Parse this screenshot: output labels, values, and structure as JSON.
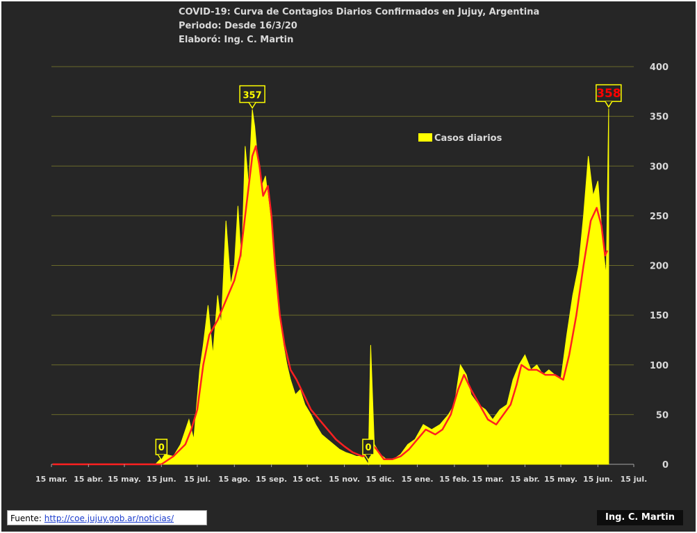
{
  "header": {
    "line1": "COVID-19: Curva de Contagios Diarios Confirmados en Jujuy, Argentina",
    "line2": "Periodo: Desde 16/3/20",
    "line3": "Elaboró: Ing. C. Martin"
  },
  "footer": {
    "source_label": "Fuente: ",
    "source_link": "http://coe.jujuy.gob.ar/noticias/",
    "author": "Ing. C. Martin"
  },
  "chart_data": {
    "type": "bar",
    "x_axis": {
      "start": "2020-03-15",
      "end": "2021-07-15",
      "tick_labels": [
        "15 mar.",
        "15 abr.",
        "15 may.",
        "15 jun.",
        "15 jul.",
        "15 ago.",
        "15 sep.",
        "15 oct.",
        "15 nov.",
        "15 dic.",
        "15 ene.",
        "15 feb.",
        "15 mar.",
        "15 abr.",
        "15 may.",
        "15 jun.",
        "15 jul."
      ],
      "tick_dates": [
        "2020-03-15",
        "2020-04-15",
        "2020-05-15",
        "2020-06-15",
        "2020-07-15",
        "2020-08-15",
        "2020-09-15",
        "2020-10-15",
        "2020-11-15",
        "2020-12-15",
        "2021-01-15",
        "2021-02-15",
        "2021-03-15",
        "2021-04-15",
        "2021-05-15",
        "2021-06-15",
        "2021-07-15"
      ]
    },
    "y_axis": {
      "min": 0,
      "max": 400,
      "ticks": [
        0,
        50,
        100,
        150,
        200,
        250,
        300,
        350,
        400
      ],
      "position": "right"
    },
    "grid": true,
    "legend": {
      "position": "top-center",
      "entries": [
        "Casos diarios"
      ]
    },
    "series": [
      {
        "name": "Casos diarios",
        "kind": "bar",
        "color": "#ffff00",
        "points": [
          [
            "2020-03-16",
            0
          ],
          [
            "2020-06-01",
            0
          ],
          [
            "2020-06-10",
            0
          ],
          [
            "2020-06-18",
            10
          ],
          [
            "2020-06-25",
            8
          ],
          [
            "2020-07-01",
            20
          ],
          [
            "2020-07-08",
            45
          ],
          [
            "2020-07-12",
            25
          ],
          [
            "2020-07-17",
            95
          ],
          [
            "2020-07-20",
            120
          ],
          [
            "2020-07-24",
            160
          ],
          [
            "2020-07-28",
            110
          ],
          [
            "2020-08-01",
            170
          ],
          [
            "2020-08-04",
            140
          ],
          [
            "2020-08-08",
            245
          ],
          [
            "2020-08-12",
            180
          ],
          [
            "2020-08-15",
            200
          ],
          [
            "2020-08-18",
            260
          ],
          [
            "2020-08-21",
            200
          ],
          [
            "2020-08-24",
            320
          ],
          [
            "2020-08-27",
            280
          ],
          [
            "2020-08-30",
            357
          ],
          [
            "2020-09-01",
            340
          ],
          [
            "2020-09-04",
            300
          ],
          [
            "2020-09-07",
            280
          ],
          [
            "2020-09-10",
            290
          ],
          [
            "2020-09-13",
            260
          ],
          [
            "2020-09-16",
            230
          ],
          [
            "2020-09-19",
            180
          ],
          [
            "2020-09-22",
            150
          ],
          [
            "2020-09-25",
            120
          ],
          [
            "2020-09-28",
            100
          ],
          [
            "2020-10-01",
            85
          ],
          [
            "2020-10-05",
            70
          ],
          [
            "2020-10-09",
            75
          ],
          [
            "2020-10-13",
            60
          ],
          [
            "2020-10-18",
            50
          ],
          [
            "2020-10-22",
            40
          ],
          [
            "2020-10-27",
            30
          ],
          [
            "2020-11-01",
            25
          ],
          [
            "2020-11-06",
            20
          ],
          [
            "2020-11-11",
            15
          ],
          [
            "2020-11-16",
            12
          ],
          [
            "2020-11-21",
            10
          ],
          [
            "2020-11-25",
            8
          ],
          [
            "2020-12-01",
            8
          ],
          [
            "2020-12-05",
            0
          ],
          [
            "2020-12-07",
            120
          ],
          [
            "2020-12-10",
            20
          ],
          [
            "2020-12-15",
            10
          ],
          [
            "2020-12-20",
            5
          ],
          [
            "2020-12-26",
            5
          ],
          [
            "2021-01-01",
            10
          ],
          [
            "2021-01-07",
            20
          ],
          [
            "2021-01-13",
            25
          ],
          [
            "2021-01-20",
            40
          ],
          [
            "2021-01-27",
            35
          ],
          [
            "2021-02-03",
            40
          ],
          [
            "2021-02-10",
            50
          ],
          [
            "2021-02-15",
            60
          ],
          [
            "2021-02-20",
            100
          ],
          [
            "2021-02-25",
            90
          ],
          [
            "2021-03-01",
            70
          ],
          [
            "2021-03-07",
            60
          ],
          [
            "2021-03-13",
            55
          ],
          [
            "2021-03-19",
            45
          ],
          [
            "2021-03-25",
            55
          ],
          [
            "2021-03-31",
            60
          ],
          [
            "2021-04-05",
            85
          ],
          [
            "2021-04-10",
            100
          ],
          [
            "2021-04-15",
            110
          ],
          [
            "2021-04-20",
            95
          ],
          [
            "2021-04-25",
            100
          ],
          [
            "2021-04-30",
            90
          ],
          [
            "2021-05-05",
            95
          ],
          [
            "2021-05-10",
            90
          ],
          [
            "2021-05-15",
            85
          ],
          [
            "2021-05-20",
            130
          ],
          [
            "2021-05-25",
            170
          ],
          [
            "2021-05-30",
            200
          ],
          [
            "2021-06-03",
            250
          ],
          [
            "2021-06-07",
            310
          ],
          [
            "2021-06-11",
            270
          ],
          [
            "2021-06-15",
            285
          ],
          [
            "2021-06-18",
            240
          ],
          [
            "2021-06-20",
            210
          ],
          [
            "2021-06-22",
            190
          ],
          [
            "2021-06-24",
            358
          ]
        ]
      },
      {
        "name": "",
        "kind": "line",
        "color": "#ff2020",
        "points": [
          [
            "2020-03-16",
            0
          ],
          [
            "2020-06-15",
            0
          ],
          [
            "2020-06-25",
            8
          ],
          [
            "2020-07-05",
            20
          ],
          [
            "2020-07-10",
            35
          ],
          [
            "2020-07-15",
            55
          ],
          [
            "2020-07-20",
            100
          ],
          [
            "2020-07-25",
            130
          ],
          [
            "2020-08-01",
            145
          ],
          [
            "2020-08-08",
            165
          ],
          [
            "2020-08-15",
            185
          ],
          [
            "2020-08-20",
            210
          ],
          [
            "2020-08-25",
            260
          ],
          [
            "2020-08-30",
            310
          ],
          [
            "2020-09-02",
            320
          ],
          [
            "2020-09-05",
            300
          ],
          [
            "2020-09-08",
            270
          ],
          [
            "2020-09-12",
            280
          ],
          [
            "2020-09-15",
            250
          ],
          [
            "2020-09-18",
            200
          ],
          [
            "2020-09-22",
            150
          ],
          [
            "2020-09-26",
            120
          ],
          [
            "2020-10-01",
            95
          ],
          [
            "2020-10-06",
            85
          ],
          [
            "2020-10-12",
            70
          ],
          [
            "2020-10-18",
            55
          ],
          [
            "2020-10-25",
            45
          ],
          [
            "2020-11-01",
            35
          ],
          [
            "2020-11-08",
            25
          ],
          [
            "2020-11-15",
            18
          ],
          [
            "2020-11-22",
            12
          ],
          [
            "2020-11-30",
            8
          ],
          [
            "2020-12-05",
            10
          ],
          [
            "2020-12-08",
            20
          ],
          [
            "2020-12-12",
            15
          ],
          [
            "2020-12-18",
            5
          ],
          [
            "2020-12-25",
            5
          ],
          [
            "2021-01-01",
            8
          ],
          [
            "2021-01-08",
            15
          ],
          [
            "2021-01-15",
            25
          ],
          [
            "2021-01-22",
            35
          ],
          [
            "2021-01-30",
            30
          ],
          [
            "2021-02-05",
            35
          ],
          [
            "2021-02-12",
            50
          ],
          [
            "2021-02-18",
            75
          ],
          [
            "2021-02-23",
            90
          ],
          [
            "2021-03-01",
            75
          ],
          [
            "2021-03-08",
            60
          ],
          [
            "2021-03-15",
            45
          ],
          [
            "2021-03-22",
            40
          ],
          [
            "2021-03-28",
            50
          ],
          [
            "2021-04-03",
            60
          ],
          [
            "2021-04-08",
            80
          ],
          [
            "2021-04-12",
            100
          ],
          [
            "2021-04-18",
            95
          ],
          [
            "2021-04-25",
            95
          ],
          [
            "2021-05-02",
            90
          ],
          [
            "2021-05-10",
            90
          ],
          [
            "2021-05-17",
            85
          ],
          [
            "2021-05-22",
            110
          ],
          [
            "2021-05-28",
            150
          ],
          [
            "2021-06-03",
            200
          ],
          [
            "2021-06-09",
            245
          ],
          [
            "2021-06-14",
            258
          ],
          [
            "2021-06-18",
            240
          ],
          [
            "2021-06-21",
            210
          ],
          [
            "2021-06-23",
            215
          ]
        ]
      }
    ],
    "annotations": [
      {
        "date": "2020-06-15",
        "value": 0,
        "label": "0",
        "color": "#ffff00"
      },
      {
        "date": "2020-08-30",
        "value": 357,
        "label": "357",
        "color": "#ffff00"
      },
      {
        "date": "2020-12-05",
        "value": 0,
        "label": "0",
        "color": "#ffff00"
      },
      {
        "date": "2021-06-24",
        "value": 358,
        "label": "358",
        "color": "#ff0000"
      }
    ]
  }
}
